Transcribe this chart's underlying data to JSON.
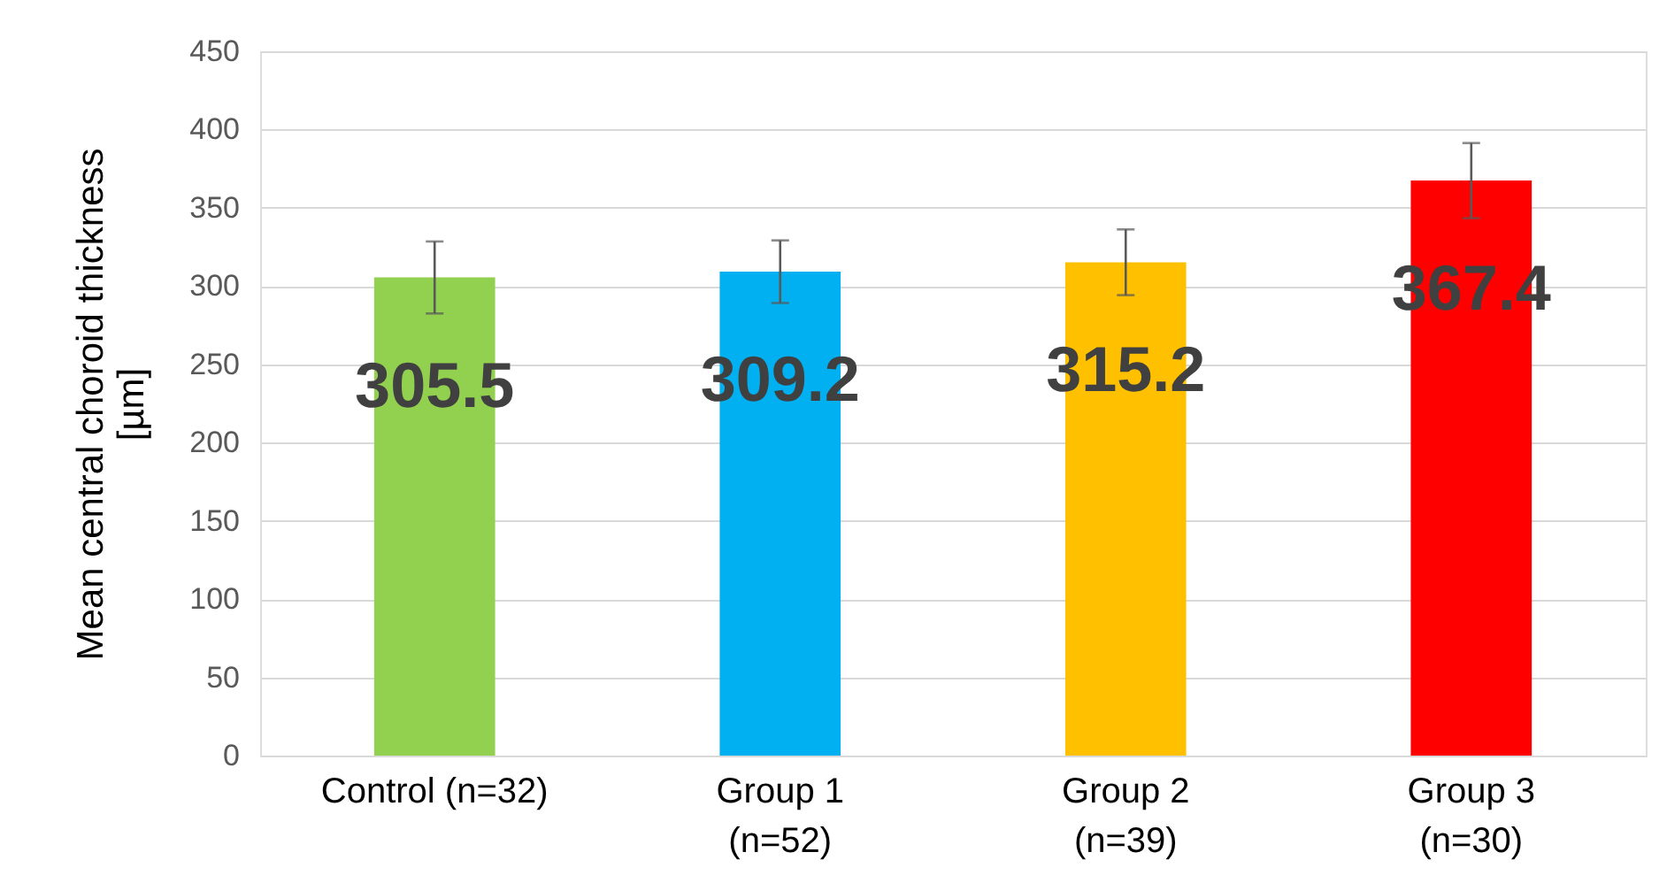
{
  "chart_data": {
    "type": "bar",
    "ylabel": "Mean central choroid thickness\n[µm]",
    "categories": [
      "Control (n=32)",
      "Group 1\n(n=52)",
      "Group 2\n(n=39)",
      "Group 3\n(n=30)"
    ],
    "values": [
      305.5,
      309.2,
      315.2,
      367.4
    ],
    "colors": [
      "#92d050",
      "#00b0f0",
      "#ffc000",
      "#ff0000"
    ],
    "errors": [
      23,
      20,
      21,
      24
    ],
    "ylim": [
      0,
      450
    ],
    "yticks": [
      0,
      50,
      100,
      150,
      200,
      250,
      300,
      350,
      400,
      450
    ],
    "grid": "y",
    "data_labels": true
  }
}
